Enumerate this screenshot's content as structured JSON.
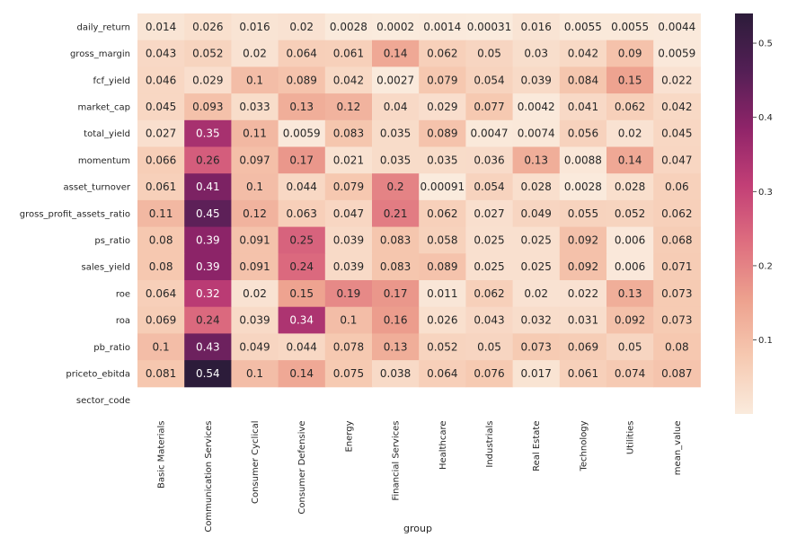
{
  "chart_data": {
    "type": "heatmap",
    "xlabel": "group",
    "ylabel": "",
    "columns": [
      "Basic Materials",
      "Communication Services",
      "Consumer Cyclical",
      "Consumer Defensive",
      "Energy",
      "Financial Services",
      "Healthcare",
      "Industrials",
      "Real Estate",
      "Technology",
      "Utilities",
      "mean_value"
    ],
    "rows": [
      "daily_return",
      "gross_margin",
      "fcf_yield",
      "market_cap",
      "total_yield",
      "momentum",
      "asset_turnover",
      "gross_profit_assets_ratio",
      "ps_ratio",
      "sales_yield",
      "roe",
      "roa",
      "pb_ratio",
      "priceto_ebitda",
      "sector_code"
    ],
    "values": [
      [
        0.014,
        0.026,
        0.016,
        0.02,
        0.0028,
        0.0002,
        0.0014,
        0.00031,
        0.016,
        0.0055,
        0.0055,
        0.0044
      ],
      [
        0.043,
        0.052,
        0.02,
        0.064,
        0.061,
        0.14,
        0.062,
        0.05,
        0.03,
        0.042,
        0.09,
        0.0059
      ],
      [
        0.046,
        0.029,
        0.1,
        0.089,
        0.042,
        0.0027,
        0.079,
        0.054,
        0.039,
        0.084,
        0.15,
        0.022
      ],
      [
        0.045,
        0.093,
        0.033,
        0.13,
        0.12,
        0.04,
        0.029,
        0.077,
        0.0042,
        0.041,
        0.062,
        0.042
      ],
      [
        0.027,
        0.35,
        0.11,
        0.0059,
        0.083,
        0.035,
        0.089,
        0.0047,
        0.0074,
        0.056,
        0.02,
        0.045
      ],
      [
        0.066,
        0.26,
        0.097,
        0.17,
        0.021,
        0.035,
        0.035,
        0.036,
        0.13,
        0.0088,
        0.14,
        0.047
      ],
      [
        0.061,
        0.41,
        0.1,
        0.044,
        0.079,
        0.2,
        0.00091,
        0.054,
        0.028,
        0.0028,
        0.028,
        0.06
      ],
      [
        0.11,
        0.45,
        0.12,
        0.063,
        0.047,
        0.21,
        0.062,
        0.027,
        0.049,
        0.055,
        0.052,
        0.062
      ],
      [
        0.08,
        0.39,
        0.091,
        0.25,
        0.039,
        0.083,
        0.058,
        0.025,
        0.025,
        0.092,
        0.006,
        0.068
      ],
      [
        0.08,
        0.39,
        0.091,
        0.24,
        0.039,
        0.083,
        0.089,
        0.025,
        0.025,
        0.092,
        0.006,
        0.071
      ],
      [
        0.064,
        0.32,
        0.02,
        0.15,
        0.19,
        0.17,
        0.011,
        0.062,
        0.02,
        0.022,
        0.13,
        0.073
      ],
      [
        0.069,
        0.24,
        0.039,
        0.34,
        0.1,
        0.16,
        0.026,
        0.043,
        0.032,
        0.031,
        0.092,
        0.073
      ],
      [
        0.1,
        0.43,
        0.049,
        0.044,
        0.078,
        0.13,
        0.052,
        0.05,
        0.073,
        0.069,
        0.05,
        0.08
      ],
      [
        0.081,
        0.54,
        0.1,
        0.14,
        0.075,
        0.038,
        0.064,
        0.076,
        0.017,
        0.061,
        0.074,
        0.087
      ],
      [
        null,
        null,
        null,
        null,
        null,
        null,
        null,
        null,
        null,
        null,
        null,
        null
      ]
    ],
    "labels": [
      [
        "0.014",
        "0.026",
        "0.016",
        "0.02",
        "0.0028",
        "0.0002",
        "0.0014",
        "0.00031",
        "0.016",
        "0.0055",
        "0.0055",
        "0.0044"
      ],
      [
        "0.043",
        "0.052",
        "0.02",
        "0.064",
        "0.061",
        "0.14",
        "0.062",
        "0.05",
        "0.03",
        "0.042",
        "0.09",
        "0.0059"
      ],
      [
        "0.046",
        "0.029",
        "0.1",
        "0.089",
        "0.042",
        "0.0027",
        "0.079",
        "0.054",
        "0.039",
        "0.084",
        "0.15",
        "0.022"
      ],
      [
        "0.045",
        "0.093",
        "0.033",
        "0.13",
        "0.12",
        "0.04",
        "0.029",
        "0.077",
        "0.0042",
        "0.041",
        "0.062",
        "0.042"
      ],
      [
        "0.027",
        "0.35",
        "0.11",
        "0.0059",
        "0.083",
        "0.035",
        "0.089",
        "0.0047",
        "0.0074",
        "0.056",
        "0.02",
        "0.045"
      ],
      [
        "0.066",
        "0.26",
        "0.097",
        "0.17",
        "0.021",
        "0.035",
        "0.035",
        "0.036",
        "0.13",
        "0.0088",
        "0.14",
        "0.047"
      ],
      [
        "0.061",
        "0.41",
        "0.1",
        "0.044",
        "0.079",
        "0.2",
        "0.00091",
        "0.054",
        "0.028",
        "0.0028",
        "0.028",
        "0.06"
      ],
      [
        "0.11",
        "0.45",
        "0.12",
        "0.063",
        "0.047",
        "0.21",
        "0.062",
        "0.027",
        "0.049",
        "0.055",
        "0.052",
        "0.062"
      ],
      [
        "0.08",
        "0.39",
        "0.091",
        "0.25",
        "0.039",
        "0.083",
        "0.058",
        "0.025",
        "0.025",
        "0.092",
        "0.006",
        "0.068"
      ],
      [
        "0.08",
        "0.39",
        "0.091",
        "0.24",
        "0.039",
        "0.083",
        "0.089",
        "0.025",
        "0.025",
        "0.092",
        "0.006",
        "0.071"
      ],
      [
        "0.064",
        "0.32",
        "0.02",
        "0.15",
        "0.19",
        "0.17",
        "0.011",
        "0.062",
        "0.02",
        "0.022",
        "0.13",
        "0.073"
      ],
      [
        "0.069",
        "0.24",
        "0.039",
        "0.34",
        "0.1",
        "0.16",
        "0.026",
        "0.043",
        "0.032",
        "0.031",
        "0.092",
        "0.073"
      ],
      [
        "0.1",
        "0.43",
        "0.049",
        "0.044",
        "0.078",
        "0.13",
        "0.052",
        "0.05",
        "0.073",
        "0.069",
        "0.05",
        "0.08"
      ],
      [
        "0.081",
        "0.54",
        "0.1",
        "0.14",
        "0.075",
        "0.038",
        "0.064",
        "0.076",
        "0.017",
        "0.061",
        "0.074",
        "0.087"
      ],
      [
        "",
        "",
        "",
        "",
        "",
        "",
        "",
        "",
        "",
        "",
        "",
        ""
      ]
    ],
    "colorbar": {
      "vmin": 0.0002,
      "vmax": 0.54,
      "ticks": [
        0.1,
        0.2,
        0.3,
        0.4,
        0.5
      ],
      "tick_labels": [
        "0.1",
        "0.2",
        "0.3",
        "0.4",
        "0.5"
      ]
    },
    "colormap": {
      "name": "rocket_r",
      "stops": [
        "#faebdd",
        "#f6c9b1",
        "#eda18e",
        "#de6e7f",
        "#c23f76",
        "#8f2469",
        "#531f55",
        "#2c1c3a"
      ]
    }
  }
}
